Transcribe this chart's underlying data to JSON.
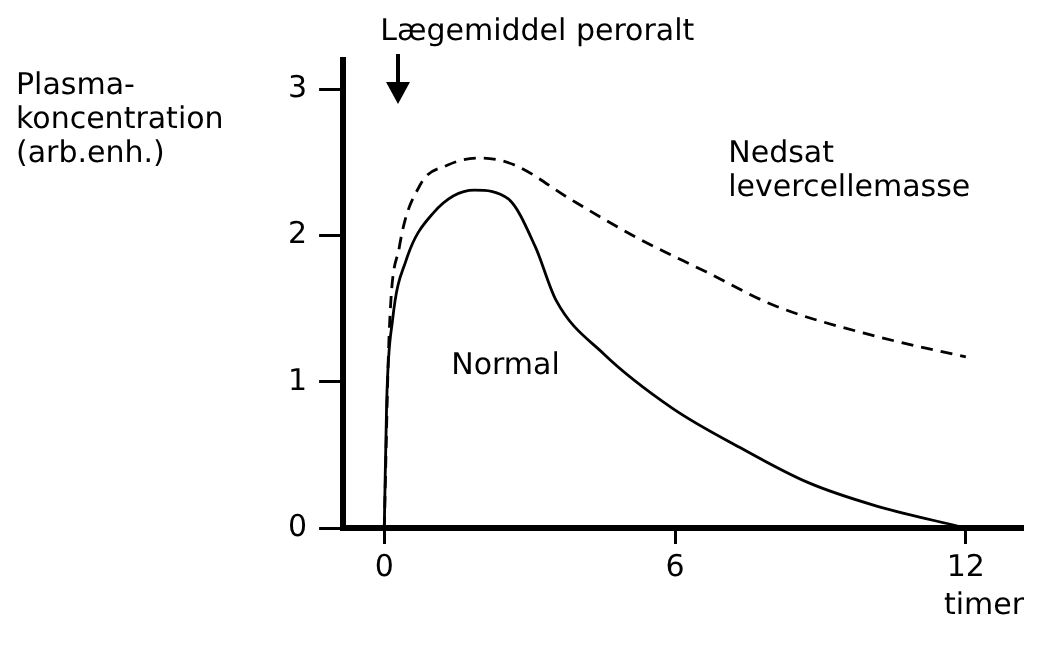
{
  "chart_data": {
    "type": "line",
    "ylabel": "Plasma-koncentration (arb.enh.)",
    "xlabel": "timer",
    "annotations": [
      "Lægemiddel peroralt"
    ],
    "xlim": [
      -0.85,
      13.2
    ],
    "xticks": [
      0,
      6,
      12
    ],
    "ylim": [
      0,
      3.2
    ],
    "yticks": [
      0,
      1,
      2,
      3
    ],
    "grid": false,
    "legend": false,
    "marker": "none",
    "series": [
      {
        "name": "Normal",
        "color": "#000000",
        "line_style": "solid",
        "x": [
          0,
          0.05,
          0.17,
          0.45,
          1.0,
          1.86,
          2.56,
          3.12,
          3.54,
          4.53,
          5.94,
          7.34,
          8.75,
          10.16,
          12
        ],
        "values": [
          0,
          0.87,
          1.42,
          1.83,
          2.15,
          2.31,
          2.25,
          1.92,
          1.56,
          1.19,
          0.82,
          0.55,
          0.31,
          0.15,
          0
        ]
      },
      {
        "name": "Nedsat levercellemasse",
        "color": "#000000",
        "line_style": "dashed",
        "x": [
          0,
          0.1,
          0.31,
          0.73,
          1.3,
          2.0,
          2.7,
          3.83,
          5.24,
          6.65,
          8.06,
          10.16,
          12
        ],
        "values": [
          0,
          1.32,
          1.92,
          2.34,
          2.48,
          2.53,
          2.48,
          2.25,
          1.98,
          1.75,
          1.52,
          1.31,
          1.17
        ]
      }
    ]
  }
}
